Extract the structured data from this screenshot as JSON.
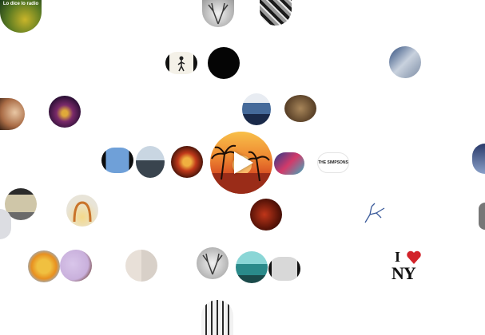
{
  "center_video": {
    "action": "play",
    "icon": "play-icon",
    "colors": {
      "sky_top": "#f6b13f",
      "sky_mid": "#e4632a",
      "sea": "#9c2c1a",
      "palm": "#2a160c"
    }
  },
  "album_bubbles": [
    {
      "name": "album-bubble-topleft-green",
      "caption": ""
    },
    {
      "name": "album-bubble-stag-1",
      "caption": ""
    },
    {
      "name": "album-bubble-bw-collage",
      "caption": ""
    },
    {
      "name": "album-bubble-walker",
      "caption": ""
    },
    {
      "name": "album-bubble-black",
      "caption": ""
    },
    {
      "name": "album-bubble-blue-photo",
      "caption": ""
    },
    {
      "name": "album-bubble-woman-portrait",
      "caption": ""
    },
    {
      "name": "album-bubble-purple-lights",
      "caption": ""
    },
    {
      "name": "album-bubble-city-blue",
      "caption": ""
    },
    {
      "name": "album-bubble-brown-sepia",
      "caption": ""
    },
    {
      "name": "album-bubble-dark-sky",
      "caption": ""
    },
    {
      "name": "album-bubble-man-ocean",
      "caption": ""
    },
    {
      "name": "album-bubble-red-emblem",
      "caption": ""
    },
    {
      "name": "album-bubble-colorful-panel",
      "caption": ""
    },
    {
      "name": "album-bubble-text-logo",
      "caption": "THE SIMPSONS"
    },
    {
      "name": "album-bubble-blue-edge",
      "caption": ""
    },
    {
      "name": "album-bubble-street",
      "caption": ""
    },
    {
      "name": "album-bubble-arch",
      "caption": ""
    },
    {
      "name": "album-bubble-violin",
      "caption": ""
    },
    {
      "name": "album-bubble-sketch-figure",
      "caption": ""
    },
    {
      "name": "album-bubble-edge-gray",
      "caption": ""
    },
    {
      "name": "album-bubble-grey-left",
      "caption": ""
    },
    {
      "name": "album-bubble-sun",
      "caption": ""
    },
    {
      "name": "album-bubble-cartoon-face",
      "caption": ""
    },
    {
      "name": "album-bubble-four-faces",
      "caption": ""
    },
    {
      "name": "album-bubble-stag-2",
      "caption": ""
    },
    {
      "name": "album-bubble-teal-building",
      "caption": ""
    },
    {
      "name": "album-bubble-grey-pipe",
      "caption": ""
    },
    {
      "name": "album-bubble-piano",
      "caption": ""
    }
  ],
  "i_love_ny": {
    "letter_i": "I",
    "letters_ny": "NY",
    "heart_color": "#d2232a"
  },
  "top_left_text": "Lo dice lo radio"
}
